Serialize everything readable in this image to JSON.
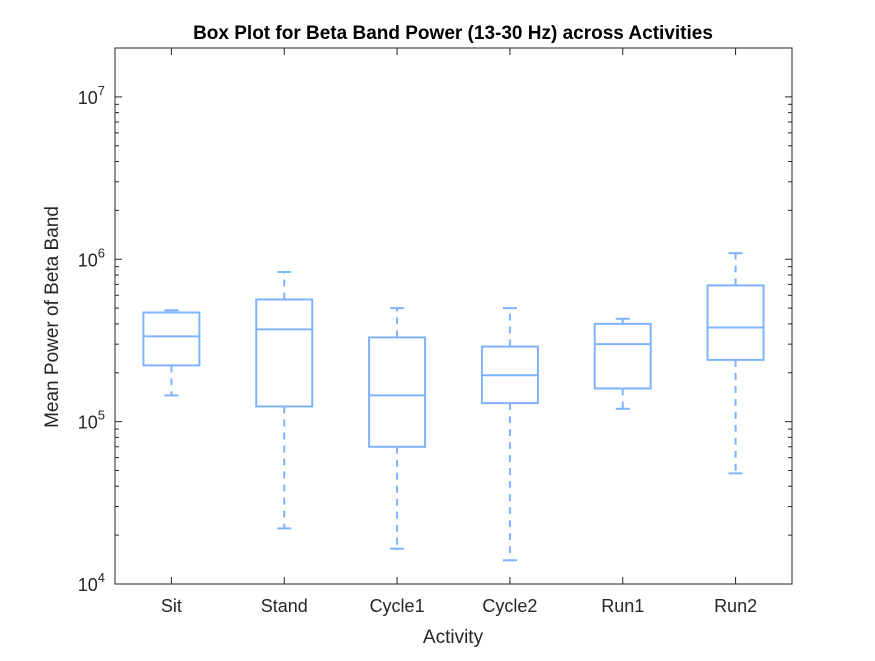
{
  "chart_data": {
    "type": "box",
    "title": "Box Plot for Beta Band Power (13-30 Hz) across Activities",
    "xlabel": "Activity",
    "ylabel": "Mean Power of Beta Band",
    "yscale": "log",
    "ylim": [
      10000,
      20000000
    ],
    "y_ticks": [
      {
        "value": 10000,
        "base": "10",
        "exp": "4"
      },
      {
        "value": 100000,
        "base": "10",
        "exp": "5"
      },
      {
        "value": 1000000,
        "base": "10",
        "exp": "6"
      },
      {
        "value": 10000000,
        "base": "10",
        "exp": "7"
      }
    ],
    "categories": [
      "Sit",
      "Stand",
      "Cycle1",
      "Cycle2",
      "Run1",
      "Run2"
    ],
    "boxes": [
      {
        "category": "Sit",
        "whisker_low": 145000,
        "q1": 222000,
        "median": 335000,
        "q3": 470000,
        "whisker_high": 485000
      },
      {
        "category": "Stand",
        "whisker_low": 22000,
        "q1": 124000,
        "median": 370000,
        "q3": 565000,
        "whisker_high": 835000
      },
      {
        "category": "Cycle1",
        "whisker_low": 16500,
        "q1": 70000,
        "median": 145000,
        "q3": 330000,
        "whisker_high": 500000
      },
      {
        "category": "Cycle2",
        "whisker_low": 14000,
        "q1": 130000,
        "median": 193000,
        "q3": 290000,
        "whisker_high": 500000
      },
      {
        "category": "Run1",
        "whisker_low": 120000,
        "q1": 160000,
        "median": 300000,
        "q3": 400000,
        "whisker_high": 430000
      },
      {
        "category": "Run2",
        "whisker_low": 48000,
        "q1": 240000,
        "median": 380000,
        "q3": 690000,
        "whisker_high": 1090000
      }
    ],
    "grid": false,
    "box_color": "#7fb3ff",
    "axis_color": "#262626"
  }
}
